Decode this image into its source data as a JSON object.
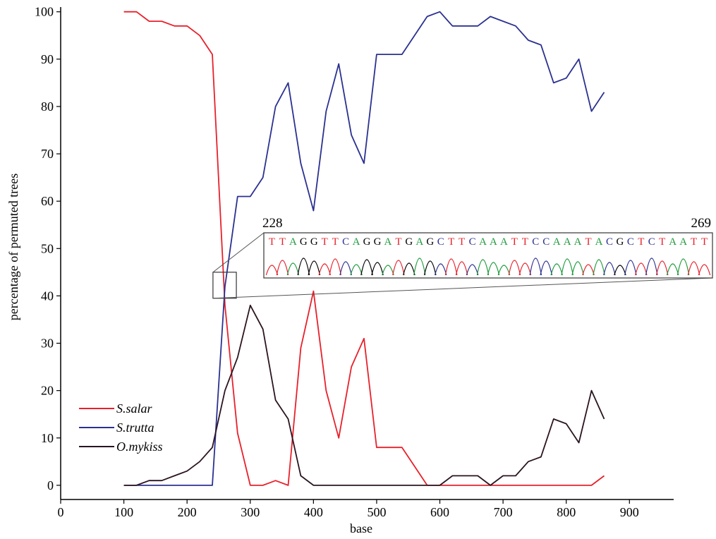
{
  "chart_data": {
    "type": "line",
    "title": "",
    "xlabel": "base",
    "ylabel": "percentage of permuted trees",
    "xlim": [
      0,
      970
    ],
    "ylim": [
      -3,
      101
    ],
    "xticks": [
      0,
      100,
      200,
      300,
      400,
      500,
      600,
      700,
      800,
      900
    ],
    "yticks": [
      0,
      10,
      20,
      30,
      40,
      50,
      60,
      70,
      80,
      90,
      100
    ],
    "grid": false,
    "legend_position": "bottom-left",
    "series": [
      {
        "name": "S.salar",
        "color": "#e8202a",
        "x": [
          100,
          120,
          140,
          160,
          180,
          200,
          220,
          240,
          260,
          280,
          300,
          320,
          340,
          360,
          380,
          400,
          420,
          440,
          460,
          480,
          500,
          520,
          540,
          560,
          580,
          600,
          620,
          640,
          660,
          680,
          700,
          720,
          740,
          760,
          780,
          800,
          820,
          840,
          860
        ],
        "y": [
          100,
          100,
          98,
          98,
          97,
          97,
          95,
          91,
          38,
          11,
          0,
          0,
          1,
          0,
          29,
          41,
          20,
          10,
          25,
          31,
          8,
          8,
          8,
          4,
          0,
          0,
          0,
          0,
          0,
          0,
          0,
          0,
          0,
          0,
          0,
          0,
          0,
          0,
          2
        ]
      },
      {
        "name": "S.trutta",
        "color": "#2b3190",
        "x": [
          100,
          120,
          140,
          160,
          180,
          200,
          220,
          240,
          260,
          280,
          300,
          320,
          340,
          360,
          380,
          400,
          420,
          440,
          460,
          480,
          500,
          520,
          540,
          560,
          580,
          600,
          620,
          640,
          660,
          680,
          700,
          720,
          740,
          760,
          780,
          800,
          820,
          840,
          860
        ],
        "y": [
          0,
          0,
          0,
          0,
          0,
          0,
          0,
          0,
          42,
          61,
          61,
          65,
          80,
          85,
          68,
          58,
          79,
          89,
          74,
          68,
          91,
          91,
          91,
          95,
          99,
          100,
          97,
          97,
          97,
          99,
          98,
          97,
          94,
          93,
          85,
          86,
          90,
          79,
          83
        ]
      },
      {
        "name": "O.mykiss",
        "color": "#2a1420",
        "x": [
          100,
          120,
          140,
          160,
          180,
          200,
          220,
          240,
          260,
          280,
          300,
          320,
          340,
          360,
          380,
          400,
          420,
          440,
          460,
          480,
          500,
          520,
          540,
          560,
          580,
          600,
          620,
          640,
          660,
          680,
          700,
          720,
          740,
          760,
          780,
          800,
          820,
          840,
          860
        ],
        "y": [
          0,
          0,
          1,
          1,
          2,
          3,
          5,
          8,
          20,
          27,
          38,
          33,
          18,
          14,
          2,
          0,
          0,
          0,
          0,
          0,
          0,
          0,
          0,
          0,
          0,
          0,
          2,
          2,
          2,
          0,
          2,
          2,
          5,
          6,
          14,
          13,
          9,
          20,
          14
        ]
      }
    ],
    "inset": {
      "start_label": "228",
      "end_label": "269",
      "region_x": [
        241,
        278
      ],
      "region_y": [
        39.5,
        45
      ],
      "sequence": [
        {
          "b": "T",
          "c": "#e8202a"
        },
        {
          "b": "T",
          "c": "#e8202a"
        },
        {
          "b": "A",
          "c": "#1e9a3c"
        },
        {
          "b": "G",
          "c": "#000000"
        },
        {
          "b": "G",
          "c": "#000000"
        },
        {
          "b": "T",
          "c": "#e8202a"
        },
        {
          "b": "T",
          "c": "#e8202a"
        },
        {
          "b": "C",
          "c": "#2b3190"
        },
        {
          "b": "A",
          "c": "#1e9a3c"
        },
        {
          "b": "G",
          "c": "#000000"
        },
        {
          "b": "G",
          "c": "#000000"
        },
        {
          "b": "A",
          "c": "#1e9a3c"
        },
        {
          "b": "T",
          "c": "#e8202a"
        },
        {
          "b": "G",
          "c": "#000000"
        },
        {
          "b": "A",
          "c": "#1e9a3c"
        },
        {
          "b": "G",
          "c": "#000000"
        },
        {
          "b": "C",
          "c": "#2b3190"
        },
        {
          "b": "T",
          "c": "#e8202a"
        },
        {
          "b": "T",
          "c": "#e8202a"
        },
        {
          "b": "C",
          "c": "#2b3190"
        },
        {
          "b": "A",
          "c": "#1e9a3c"
        },
        {
          "b": "A",
          "c": "#1e9a3c"
        },
        {
          "b": "A",
          "c": "#1e9a3c"
        },
        {
          "b": "T",
          "c": "#e8202a"
        },
        {
          "b": "T",
          "c": "#e8202a"
        },
        {
          "b": "C",
          "c": "#2b3190"
        },
        {
          "b": "C",
          "c": "#2b3190"
        },
        {
          "b": "A",
          "c": "#1e9a3c"
        },
        {
          "b": "A",
          "c": "#1e9a3c"
        },
        {
          "b": "A",
          "c": "#1e9a3c"
        },
        {
          "b": "T",
          "c": "#e8202a"
        },
        {
          "b": "A",
          "c": "#1e9a3c"
        },
        {
          "b": "C",
          "c": "#2b3190"
        },
        {
          "b": "G",
          "c": "#000000"
        },
        {
          "b": "C",
          "c": "#2b3190"
        },
        {
          "b": "T",
          "c": "#e8202a"
        },
        {
          "b": "C",
          "c": "#2b3190"
        },
        {
          "b": "T",
          "c": "#e8202a"
        },
        {
          "b": "A",
          "c": "#1e9a3c"
        },
        {
          "b": "A",
          "c": "#1e9a3c"
        },
        {
          "b": "T",
          "c": "#e8202a"
        },
        {
          "b": "T",
          "c": "#e8202a"
        }
      ]
    }
  }
}
